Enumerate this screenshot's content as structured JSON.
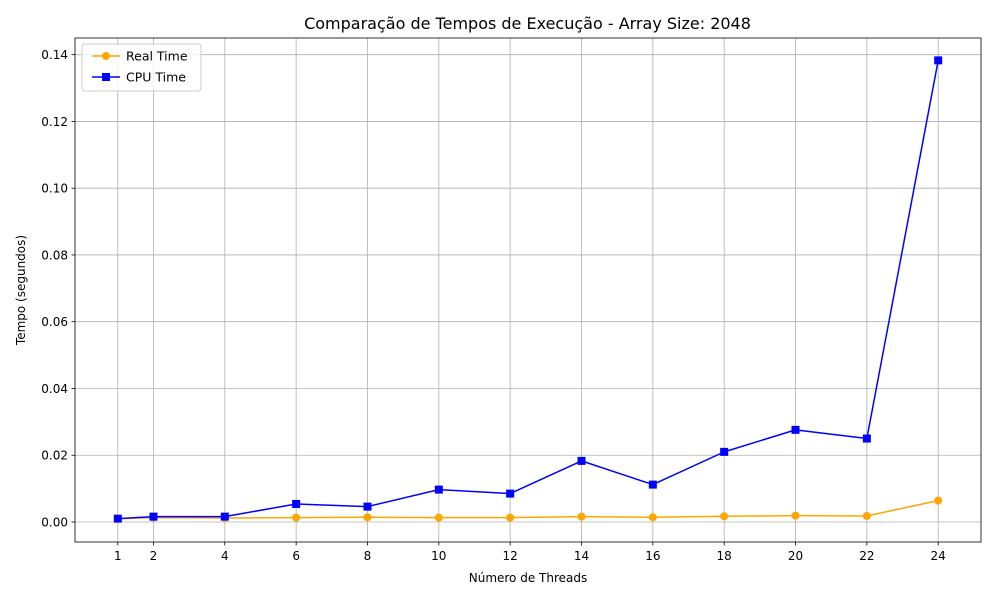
{
  "chart_data": {
    "type": "line",
    "title": "Comparação de Tempos de Execução - Array Size: 2048",
    "xlabel": "Número de Threads",
    "ylabel": "Tempo (segundos)",
    "x": [
      1,
      2,
      4,
      6,
      8,
      10,
      12,
      14,
      16,
      18,
      20,
      22,
      24
    ],
    "x_ticks": [
      "1",
      "2",
      "4",
      "6",
      "8",
      "10",
      "12",
      "14",
      "16",
      "18",
      "20",
      "22",
      "24"
    ],
    "y_ticks": [
      "0.00",
      "0.02",
      "0.04",
      "0.06",
      "0.08",
      "0.10",
      "0.12",
      "0.14"
    ],
    "xlim": [
      -0.2,
      25.2
    ],
    "ylim": [
      -0.006,
      0.145
    ],
    "grid": true,
    "legend_position": "top-left",
    "series": [
      {
        "name": "Real Time",
        "color": "#ffa500",
        "marker": "circle",
        "values": [
          0.001,
          0.0013,
          0.0012,
          0.0013,
          0.0014,
          0.0013,
          0.0013,
          0.0016,
          0.0014,
          0.0017,
          0.0019,
          0.0018,
          0.0064
        ]
      },
      {
        "name": "CPU Time",
        "color": "#0000ff",
        "marker": "square",
        "values": [
          0.001,
          0.0016,
          0.0016,
          0.0054,
          0.0046,
          0.0097,
          0.0085,
          0.0183,
          0.0112,
          0.021,
          0.0276,
          0.025,
          0.1383
        ]
      }
    ]
  }
}
